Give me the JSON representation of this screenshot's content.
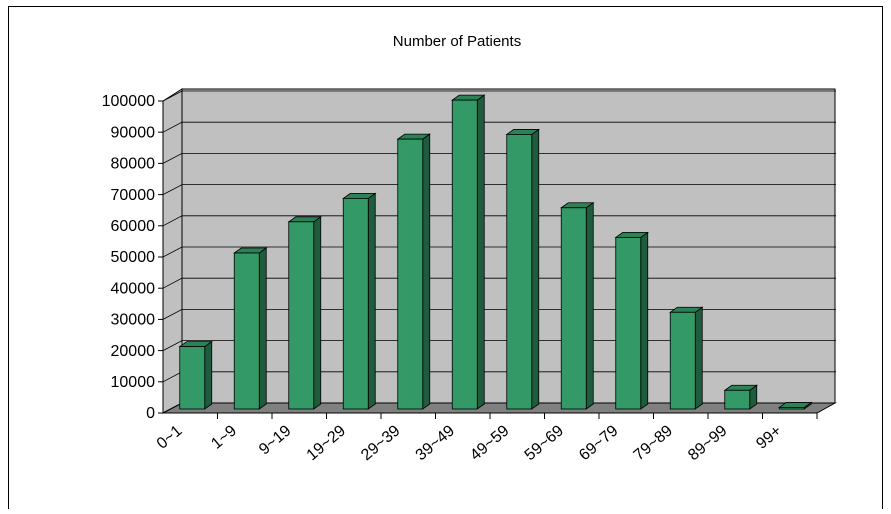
{
  "chart_data": {
    "type": "bar",
    "title": "Number of Patients",
    "categories": [
      "0~1",
      "1~9",
      "9~19",
      "19~29",
      "29~39",
      "39~49",
      "49~59",
      "59~69",
      "69~79",
      "79~89",
      "89~99",
      "99+"
    ],
    "values": [
      20000,
      50000,
      60000,
      67500,
      86500,
      99000,
      88000,
      64500,
      55000,
      31000,
      6000,
      500
    ],
    "color": "#339966",
    "ylim": [
      0,
      100000
    ],
    "yticks": [
      0,
      10000,
      20000,
      30000,
      40000,
      50000,
      60000,
      70000,
      80000,
      90000,
      100000
    ],
    "grid": true
  }
}
